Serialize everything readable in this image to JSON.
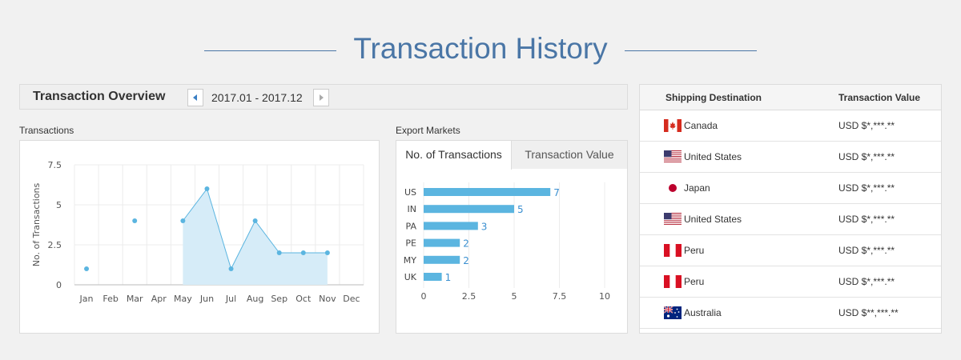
{
  "page": {
    "title": "Transaction History"
  },
  "overview": {
    "title": "Transaction Overview",
    "period": "2017.01 - 2017.12"
  },
  "transactions_panel": {
    "label": "Transactions"
  },
  "export_panel": {
    "label": "Export Markets",
    "tabs": [
      "No. of Transactions",
      "Transaction Value"
    ],
    "active_tab": 0
  },
  "table": {
    "headers": {
      "destination": "Shipping Destination",
      "value": "Transaction Value"
    },
    "rows": [
      {
        "country": "Canada",
        "flag": "canada-flag-icon",
        "value": "USD $*,***.**"
      },
      {
        "country": "United States",
        "flag": "us-flag-icon",
        "value": "USD $*,***.**"
      },
      {
        "country": "Japan",
        "flag": "japan-flag-icon",
        "value": "USD $*,***.**"
      },
      {
        "country": "United States",
        "flag": "us-flag-icon",
        "value": "USD $*,***.**"
      },
      {
        "country": "Peru",
        "flag": "peru-flag-icon",
        "value": "USD $*,***.**"
      },
      {
        "country": "Peru",
        "flag": "peru-flag-icon",
        "value": "USD $*,***.**"
      },
      {
        "country": "Australia",
        "flag": "australia-flag-icon",
        "value": "USD $**,***.**"
      }
    ]
  },
  "colors": {
    "accent": "#4a76a6",
    "series": "#5bb5e0",
    "area": "#d6ecf8",
    "bar": "#5bb5e0"
  },
  "chart_data": [
    {
      "type": "line",
      "title": "",
      "xlabel": "",
      "ylabel": "No. of Transactions",
      "categories": [
        "Jan",
        "Feb",
        "Mar",
        "Apr",
        "May",
        "Jun",
        "Jul",
        "Aug",
        "Sep",
        "Oct",
        "Nov",
        "Dec"
      ],
      "values": [
        1,
        null,
        4,
        null,
        4,
        6,
        1,
        4,
        2,
        2,
        2,
        null
      ],
      "area_categories": [
        "May",
        "Jun",
        "Jul",
        "Aug",
        "Sep",
        "Oct",
        "Nov"
      ],
      "yticks": [
        "0",
        "2.5",
        "5",
        "7.5"
      ],
      "ylim": [
        0,
        7.5
      ],
      "grid": true
    },
    {
      "type": "bar",
      "orientation": "horizontal",
      "title": "",
      "categories": [
        "US",
        "IN",
        "PA",
        "PE",
        "MY",
        "UK"
      ],
      "values": [
        7,
        5,
        3,
        2,
        2,
        1
      ],
      "xticks": [
        "0",
        "2.5",
        "5",
        "7.5",
        "10"
      ],
      "xlim": [
        0,
        10
      ],
      "grid": true
    }
  ]
}
